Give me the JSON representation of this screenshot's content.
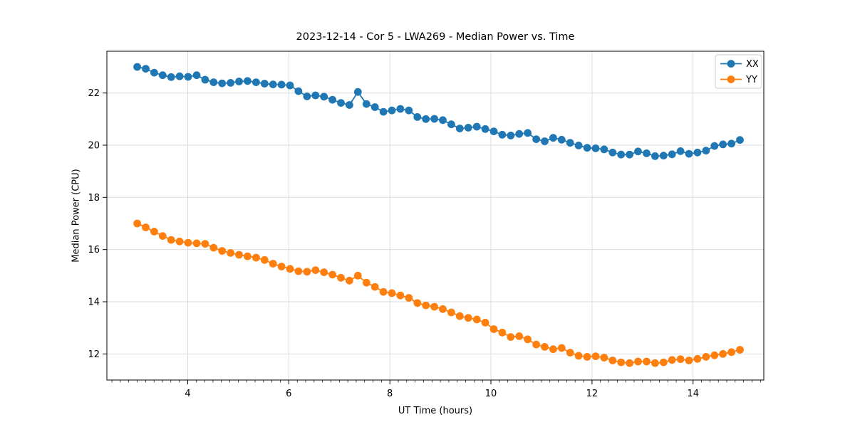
{
  "chart_data": {
    "type": "line",
    "title": "2023-12-14 - Cor 5 - LWA269 - Median Power vs. Time",
    "xlabel": "UT Time (hours)",
    "ylabel": "Median Power (CPU)",
    "xlim": [
      2.4,
      15.4
    ],
    "ylim": [
      11.0,
      23.6
    ],
    "xticks": [
      4,
      6,
      8,
      10,
      12,
      14
    ],
    "yticks": [
      12,
      14,
      16,
      18,
      20,
      22
    ],
    "x_minor_step": 0.16667,
    "grid": true,
    "grid_color": "#d9d9d9",
    "legend_position": "upper right",
    "marker": "circle",
    "x": [
      3.0,
      3.168,
      3.336,
      3.504,
      3.672,
      3.84,
      4.008,
      4.176,
      4.344,
      4.512,
      4.68,
      4.848,
      5.016,
      5.184,
      5.352,
      5.52,
      5.688,
      5.856,
      6.024,
      6.192,
      6.36,
      6.528,
      6.696,
      6.864,
      7.032,
      7.2,
      7.368,
      7.536,
      7.704,
      7.872,
      8.04,
      8.208,
      8.376,
      8.544,
      8.712,
      8.88,
      9.048,
      9.216,
      9.384,
      9.552,
      9.72,
      9.888,
      10.056,
      10.224,
      10.392,
      10.56,
      10.728,
      10.896,
      11.064,
      11.232,
      11.4,
      11.568,
      11.736,
      11.904,
      12.072,
      12.24,
      12.408,
      12.576,
      12.744,
      12.912,
      13.08,
      13.248,
      13.416,
      13.584,
      13.752,
      13.92,
      14.088,
      14.256,
      14.424,
      14.592,
      14.76,
      14.928
    ],
    "series": [
      {
        "name": "XX",
        "color": "#1f77b4",
        "values": [
          23.0,
          22.93,
          22.78,
          22.68,
          22.61,
          22.64,
          22.62,
          22.68,
          22.51,
          22.41,
          22.37,
          22.39,
          22.44,
          22.46,
          22.41,
          22.36,
          22.33,
          22.32,
          22.29,
          22.07,
          21.87,
          21.91,
          21.86,
          21.74,
          21.62,
          21.54,
          22.04,
          21.58,
          21.46,
          21.28,
          21.33,
          21.39,
          21.33,
          21.08,
          21.0,
          21.01,
          20.96,
          20.8,
          20.64,
          20.67,
          20.71,
          20.62,
          20.53,
          20.4,
          20.37,
          20.43,
          20.47,
          20.23,
          20.15,
          20.28,
          20.21,
          20.09,
          19.99,
          19.9,
          19.88,
          19.84,
          19.72,
          19.64,
          19.64,
          19.76,
          19.69,
          19.58,
          19.6,
          19.65,
          19.77,
          19.67,
          19.72,
          19.79,
          19.97,
          20.03,
          20.06,
          20.2
        ]
      },
      {
        "name": "YY",
        "color": "#ff7f0e",
        "values": [
          17.0,
          16.85,
          16.69,
          16.52,
          16.37,
          16.31,
          16.26,
          16.24,
          16.22,
          16.07,
          15.95,
          15.87,
          15.8,
          15.74,
          15.69,
          15.6,
          15.46,
          15.35,
          15.26,
          15.17,
          15.15,
          15.21,
          15.13,
          15.04,
          14.92,
          14.81,
          15.0,
          14.73,
          14.57,
          14.38,
          14.33,
          14.24,
          14.15,
          13.95,
          13.86,
          13.81,
          13.72,
          13.59,
          13.45,
          13.38,
          13.32,
          13.2,
          12.95,
          12.82,
          12.65,
          12.68,
          12.56,
          12.36,
          12.27,
          12.18,
          12.23,
          12.05,
          11.93,
          11.89,
          11.91,
          11.86,
          11.75,
          11.68,
          11.65,
          11.71,
          11.71,
          11.65,
          11.68,
          11.77,
          11.8,
          11.75,
          11.81,
          11.89,
          11.95,
          12.0,
          12.07,
          12.16
        ]
      }
    ]
  },
  "style": {
    "spine_color": "#000000",
    "tick_color": "#000000",
    "legend_border_color": "#cccccc",
    "background": "#ffffff"
  }
}
